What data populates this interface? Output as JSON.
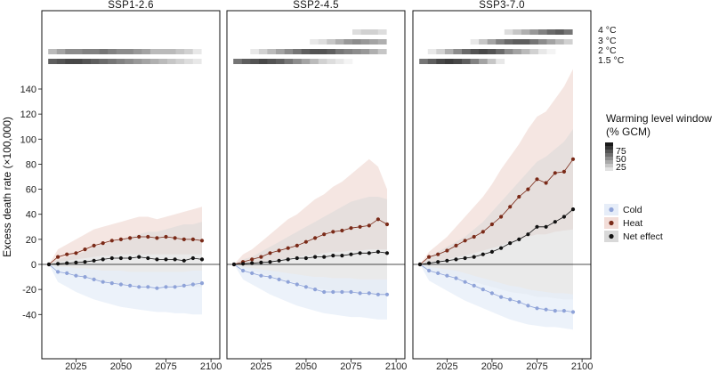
{
  "chart_data": {
    "type": "line",
    "ylabel": "Excess death rate (×100,000)",
    "ylim": [
      -55,
      155
    ],
    "yticks": [
      -40,
      -20,
      0,
      20,
      40,
      60,
      80,
      100,
      120,
      140
    ],
    "xlim": [
      2005,
      2100
    ],
    "xticks": [
      2025,
      2050,
      2075,
      2100
    ],
    "x": [
      2010,
      2015,
      2020,
      2025,
      2030,
      2035,
      2040,
      2045,
      2050,
      2055,
      2060,
      2065,
      2070,
      2075,
      2080,
      2085,
      2090,
      2095
    ],
    "warming_labels": [
      "4 °C",
      "3 °C",
      "2 °C",
      "1.5 °C"
    ],
    "warming_legend": {
      "title_line1": "Warming level window",
      "title_line2": "(% GCM)",
      "ticks": [
        "75",
        "50",
        "25"
      ]
    },
    "series_legend": [
      {
        "name": "Cold",
        "color": "#8fa3d8",
        "band": "#e6edf8"
      },
      {
        "name": "Heat",
        "color": "#7a2a18",
        "band": "#f2ddd8"
      },
      {
        "name": "Net effect",
        "color": "#111111",
        "band": "#d9d9d9"
      }
    ],
    "panels": [
      {
        "title": "SSP1-2.6",
        "series": [
          {
            "name": "Cold",
            "values": [
              0,
              -6,
              -7,
              -9,
              -10,
              -12,
              -14,
              -15,
              -16,
              -17,
              -18,
              -18,
              -19,
              -18,
              -18,
              -17,
              -16,
              -15
            ]
          },
          {
            "name": "Heat",
            "values": [
              0,
              6,
              8,
              9,
              12,
              15,
              17,
              19,
              20,
              21,
              22,
              22,
              21,
              22,
              21,
              20,
              20,
              19
            ]
          },
          {
            "name": "Net effect",
            "values": [
              0,
              0.5,
              1,
              1.5,
              2,
              3,
              4,
              5,
              5,
              5,
              6,
              5,
              4,
              4,
              4,
              3,
              5,
              4
            ]
          }
        ],
        "bands": [
          {
            "name": "Cold",
            "low": [
              0,
              -14,
              -18,
              -22,
              -25,
              -28,
              -30,
              -32,
              -34,
              -35,
              -36,
              -37,
              -38,
              -38,
              -39,
              -39,
              -40,
              -40
            ],
            "high": [
              0,
              -2,
              -2,
              -3,
              -3,
              -4,
              -5,
              -5,
              -5,
              -6,
              -6,
              -6,
              -6,
              -6,
              -6,
              -6,
              -5,
              -5
            ]
          },
          {
            "name": "Heat",
            "low": [
              0,
              2,
              3,
              4,
              5,
              6,
              7,
              7,
              8,
              8,
              8,
              8,
              8,
              8,
              8,
              8,
              8,
              8
            ],
            "high": [
              0,
              12,
              16,
              20,
              24,
              28,
              30,
              32,
              34,
              36,
              38,
              38,
              36,
              38,
              40,
              42,
              44,
              46
            ]
          },
          {
            "name": "Net effect",
            "low": [
              0,
              -4,
              -6,
              -8,
              -10,
              -12,
              -14,
              -15,
              -16,
              -16,
              -17,
              -17,
              -17,
              -17,
              -18,
              -18,
              -18,
              -18
            ],
            "high": [
              0,
              4,
              6,
              8,
              10,
              14,
              16,
              18,
              20,
              22,
              24,
              26,
              26,
              28,
              30,
              32,
              32,
              34
            ]
          }
        ],
        "warming_bars": [
          {
            "label": "4 °C",
            "cells": []
          },
          {
            "label": "3 °C",
            "cells": []
          },
          {
            "label": "2 °C",
            "cells": [
              0.3,
              0.4,
              0.5,
              0.5,
              0.55,
              0.55,
              0.6,
              0.55,
              0.5,
              0.5,
              0.45,
              0.4,
              0.3,
              0.3,
              0.3,
              0.25,
              0.2,
              0.1
            ]
          },
          {
            "label": "1.5 °C",
            "cells": [
              0.7,
              0.75,
              0.8,
              0.8,
              0.75,
              0.7,
              0.65,
              0.6,
              0.55,
              0.5,
              0.45,
              0.4,
              0.35,
              0.3,
              0.25,
              0.2,
              0.15,
              0.1
            ]
          }
        ]
      },
      {
        "title": "SSP2-4.5",
        "series": [
          {
            "name": "Cold",
            "values": [
              0,
              -5,
              -7,
              -9,
              -10,
              -12,
              -14,
              -16,
              -18,
              -20,
              -22,
              -22,
              -22,
              -22,
              -23,
              -23,
              -24,
              -24
            ]
          },
          {
            "name": "Heat",
            "values": [
              0,
              2,
              4,
              6,
              9,
              11,
              13,
              15,
              18,
              21,
              24,
              26,
              27,
              29,
              30,
              31,
              36,
              32
            ]
          },
          {
            "name": "Net effect",
            "values": [
              0,
              0.5,
              1,
              1.5,
              2,
              3,
              4,
              5,
              5,
              6,
              6,
              7,
              7,
              8,
              9,
              9,
              10,
              9
            ]
          }
        ],
        "bands": [
          {
            "name": "Cold",
            "low": [
              0,
              -12,
              -16,
              -20,
              -24,
              -27,
              -30,
              -33,
              -35,
              -37,
              -39,
              -40,
              -41,
              -42,
              -42,
              -43,
              -44,
              -44
            ],
            "high": [
              0,
              -2,
              -3,
              -4,
              -5,
              -6,
              -7,
              -8,
              -9,
              -10,
              -10,
              -11,
              -11,
              -11,
              -12,
              -12,
              -12,
              -12
            ]
          },
          {
            "name": "Heat",
            "low": [
              0,
              0,
              1,
              2,
              3,
              4,
              5,
              6,
              7,
              8,
              9,
              10,
              10,
              11,
              11,
              12,
              12,
              12
            ],
            "high": [
              0,
              8,
              12,
              18,
              24,
              30,
              36,
              40,
              46,
              52,
              56,
              62,
              66,
              72,
              78,
              84,
              78,
              60
            ]
          },
          {
            "name": "Net effect",
            "low": [
              0,
              -3,
              -5,
              -7,
              -9,
              -11,
              -13,
              -15,
              -17,
              -19,
              -20,
              -21,
              -22,
              -22,
              -23,
              -24,
              -24,
              -24
            ],
            "high": [
              0,
              4,
              6,
              10,
              14,
              18,
              22,
              26,
              30,
              34,
              38,
              42,
              46,
              50,
              52,
              54,
              54,
              52
            ]
          }
        ],
        "warming_bars": [
          {
            "label": "4 °C",
            "cells": [
              0,
              0,
              0,
              0,
              0,
              0,
              0,
              0,
              0,
              0,
              0,
              0,
              0,
              0,
              0.15,
              0.2,
              0.2,
              0.15
            ]
          },
          {
            "label": "3 °C",
            "cells": [
              0,
              0,
              0,
              0,
              0,
              0,
              0,
              0,
              0,
              0.1,
              0.15,
              0.25,
              0.35,
              0.45,
              0.5,
              0.45,
              0.4,
              0.35
            ]
          },
          {
            "label": "2 °C",
            "cells": [
              0,
              0,
              0.1,
              0.2,
              0.3,
              0.4,
              0.5,
              0.6,
              0.7,
              0.75,
              0.75,
              0.7,
              0.6,
              0.55,
              0.5,
              0.45,
              0.35,
              0.25
            ]
          },
          {
            "label": "1.5 °C",
            "cells": [
              0.6,
              0.7,
              0.75,
              0.8,
              0.75,
              0.7,
              0.6,
              0.5,
              0.4,
              0.3,
              0.2,
              0.15,
              0.1,
              0.05,
              0,
              0,
              0,
              0
            ]
          }
        ]
      },
      {
        "title": "SSP3-7.0",
        "series": [
          {
            "name": "Cold",
            "values": [
              0,
              -5,
              -7,
              -9,
              -11,
              -14,
              -17,
              -20,
              -23,
              -26,
              -28,
              -30,
              -33,
              -35,
              -36,
              -37,
              -37,
              -38
            ]
          },
          {
            "name": "Heat",
            "values": [
              0,
              6,
              8,
              11,
              15,
              19,
              22,
              26,
              32,
              38,
              46,
              54,
              60,
              68,
              65,
              73,
              74,
              84
            ]
          },
          {
            "name": "Net effect",
            "values": [
              0,
              1,
              2,
              3,
              4,
              5,
              6,
              8,
              10,
              13,
              17,
              20,
              24,
              30,
              30,
              34,
              38,
              44
            ]
          }
        ],
        "bands": [
          {
            "name": "Cold",
            "low": [
              0,
              -13,
              -17,
              -21,
              -25,
              -29,
              -32,
              -35,
              -38,
              -41,
              -44,
              -46,
              -48,
              -49,
              -50,
              -50,
              -51,
              -52
            ],
            "high": [
              0,
              -2,
              -3,
              -4,
              -5,
              -7,
              -9,
              -11,
              -13,
              -15,
              -17,
              -18,
              -20,
              -21,
              -22,
              -23,
              -23,
              -24
            ]
          },
          {
            "name": "Heat",
            "low": [
              0,
              2,
              3,
              4,
              6,
              7,
              9,
              11,
              13,
              15,
              18,
              20,
              22,
              24,
              24,
              26,
              27,
              28
            ],
            "high": [
              0,
              10,
              16,
              22,
              30,
              38,
              46,
              54,
              64,
              76,
              86,
              96,
              108,
              118,
              122,
              132,
              142,
              156
            ]
          },
          {
            "name": "Net effect",
            "low": [
              0,
              -4,
              -6,
              -8,
              -10,
              -12,
              -14,
              -16,
              -18,
              -20,
              -22,
              -23,
              -24,
              -26,
              -26,
              -27,
              -28,
              -28
            ],
            "high": [
              0,
              6,
              10,
              14,
              18,
              22,
              28,
              34,
              42,
              50,
              58,
              66,
              74,
              82,
              86,
              92,
              98,
              108
            ]
          }
        ],
        "warming_bars": [
          {
            "label": "4 °C",
            "cells": [
              0,
              0,
              0,
              0,
              0,
              0,
              0,
              0,
              0,
              0,
              0.15,
              0.25,
              0.35,
              0.45,
              0.55,
              0.65,
              0.7,
              0.6
            ]
          },
          {
            "label": "3 °C",
            "cells": [
              0,
              0,
              0,
              0,
              0,
              0,
              0.1,
              0.25,
              0.4,
              0.55,
              0.65,
              0.7,
              0.7,
              0.6,
              0.5,
              0.4,
              0.3,
              0.2
            ]
          },
          {
            "label": "2 °C",
            "cells": [
              0,
              0.1,
              0.2,
              0.35,
              0.5,
              0.65,
              0.75,
              0.8,
              0.75,
              0.65,
              0.5,
              0.4,
              0.3,
              0.2,
              0.1,
              0.05,
              0,
              0
            ]
          },
          {
            "label": "1.5 °C",
            "cells": [
              0.6,
              0.7,
              0.8,
              0.85,
              0.8,
              0.7,
              0.55,
              0.4,
              0.25,
              0.1,
              0,
              0,
              0,
              0,
              0,
              0,
              0,
              0
            ]
          }
        ]
      }
    ]
  }
}
